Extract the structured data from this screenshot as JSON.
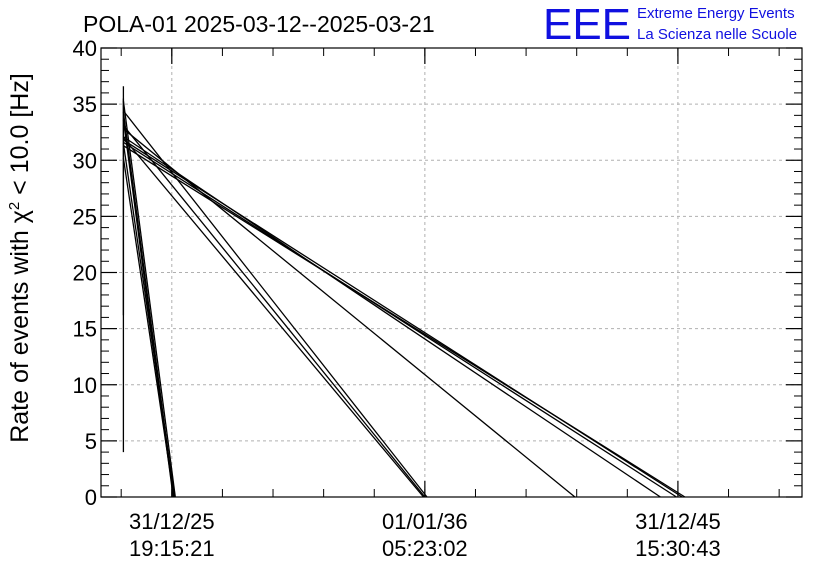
{
  "title": "POLA-01 2025-03-12--2025-03-21",
  "logo": {
    "mark": "EEE",
    "line1": "Extreme Energy Events",
    "line2": "La Scienza nelle Scuole",
    "color": "#1010e0"
  },
  "chart_data": {
    "type": "line",
    "title": "POLA-01 2025-03-12--2025-03-21",
    "ylabel_prefix": "Rate of events with ",
    "ylabel_symbol": "χ",
    "ylabel_exponent": "2",
    "ylabel_suffix": " < 10.0 [Hz]",
    "xlabel": "",
    "ylim": [
      0,
      40
    ],
    "yticks": [
      "0",
      "5",
      "10",
      "15",
      "20",
      "25",
      "30",
      "35",
      "40"
    ],
    "xlim": [
      0,
      100
    ],
    "xtick_positions": [
      10.1,
      46.2,
      82.3
    ],
    "xticks": [
      {
        "date": "31/12/25",
        "time": "19:15:21"
      },
      {
        "date": "01/01/36",
        "time": "05:23:02"
      },
      {
        "date": "31/12/45",
        "time": "15:30:43"
      }
    ],
    "grid": true,
    "line_color": "#000000",
    "series": [
      {
        "x": [
          3.2,
          3.2
        ],
        "y": [
          36.6,
          4.0
        ]
      },
      {
        "x": [
          3.2,
          3.2
        ],
        "y": [
          35.5,
          16.2
        ]
      },
      {
        "x": [
          3.2,
          10.6
        ],
        "y": [
          35.3,
          0.0
        ]
      },
      {
        "x": [
          3.2,
          10.4
        ],
        "y": [
          34.3,
          0.0
        ]
      },
      {
        "x": [
          3.2,
          10.3
        ],
        "y": [
          33.6,
          0.0
        ]
      },
      {
        "x": [
          3.2,
          10.5
        ],
        "y": [
          31.5,
          0.0
        ]
      },
      {
        "x": [
          3.2,
          10.4
        ],
        "y": [
          30.2,
          0.0
        ]
      },
      {
        "x": [
          3.2,
          46.5
        ],
        "y": [
          34.4,
          0.0
        ]
      },
      {
        "x": [
          3.2,
          46.2
        ],
        "y": [
          33.1,
          0.0
        ]
      },
      {
        "x": [
          3.2,
          46.0
        ],
        "y": [
          32.0,
          0.0
        ]
      },
      {
        "x": [
          3.2,
          67.6
        ],
        "y": [
          32.8,
          0.0
        ]
      },
      {
        "x": [
          3.2,
          79.8
        ],
        "y": [
          32.1,
          0.0
        ]
      },
      {
        "x": [
          3.2,
          82.9
        ],
        "y": [
          31.8,
          0.0
        ]
      },
      {
        "x": [
          3.2,
          83.3
        ],
        "y": [
          31.3,
          0.0
        ]
      },
      {
        "x": [
          3.2,
          82.1
        ],
        "y": [
          31.6,
          0.0
        ]
      }
    ]
  }
}
